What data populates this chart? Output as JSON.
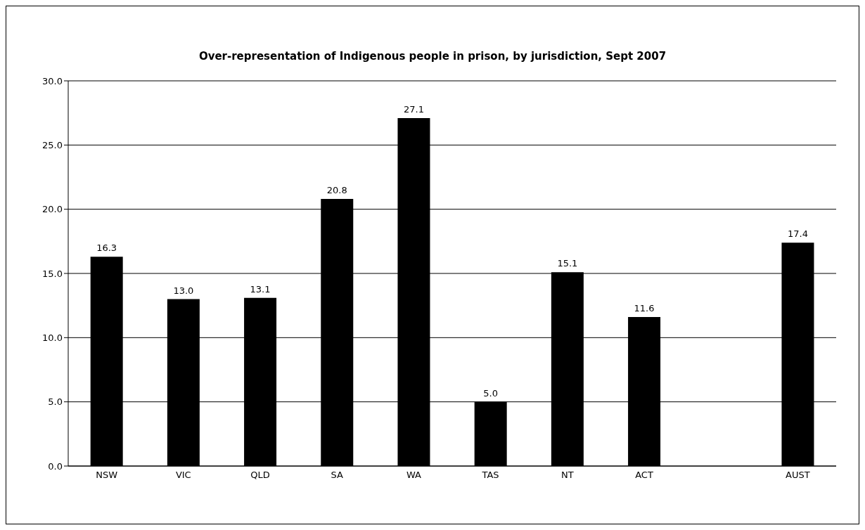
{
  "chart_data": {
    "type": "bar",
    "title": "Over-representation of Indigenous people in prison, by jurisdiction, Sept 2007",
    "categories": [
      "NSW",
      "VIC",
      "QLD",
      "SA",
      "WA",
      "TAS",
      "NT",
      "ACT",
      null,
      "AUST"
    ],
    "series": [
      {
        "color": "#000000",
        "values": [
          16.3,
          13.0,
          13.1,
          20.8,
          27.1,
          5.0,
          15.1,
          11.6,
          null,
          17.4
        ],
        "value_labels": [
          "16.3",
          "13.0",
          "13.1",
          "20.8",
          "27.1",
          "5.0",
          "15.1",
          "11.6",
          null,
          "17.4"
        ]
      }
    ],
    "ylim": [
      0,
      30
    ],
    "yticks": [
      {
        "value": 0,
        "label": "0.0"
      },
      {
        "value": 5,
        "label": "5.0"
      },
      {
        "value": 10,
        "label": "10.0"
      },
      {
        "value": 15,
        "label": "15.0"
      },
      {
        "value": 20,
        "label": "20.0"
      },
      {
        "value": 25,
        "label": "25.0"
      },
      {
        "value": 30,
        "label": "30.0"
      }
    ],
    "grid": "y",
    "legend": false
  }
}
